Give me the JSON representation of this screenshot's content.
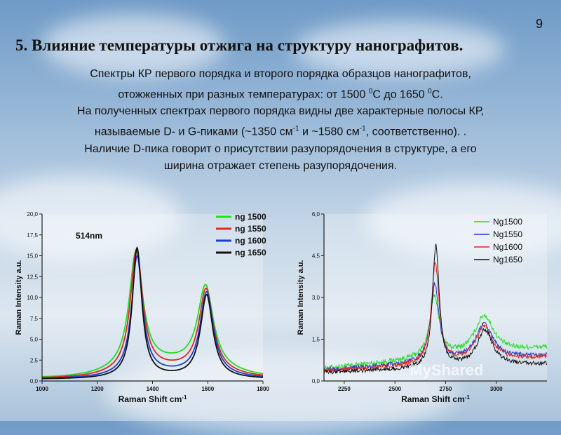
{
  "slide": {
    "number": "9",
    "title": "5. Влияние температуры отжига на структуру нанографитов.",
    "paragraph": [
      "Спектры КР первого порядка и второго порядка  образцов нанографитов,",
      "отожженных при разных температурах: от 1500 ",
      "0",
      "С до 1650 ",
      "0",
      "С.",
      "На полученных спектрах первого порядка видны две характерные полосы КР,",
      "называемые D- и G-пиками (~1350 см",
      "-1",
      " и ~1580 см",
      "-1",
      ", соответственно). .",
      "Наличие D-пика говорит о присутствии разупорядочения в структуре, а его",
      "ширина отражает степень разупорядочения."
    ]
  },
  "chart_data": [
    {
      "type": "line",
      "xlabel": "Raman Shift cm",
      "xlabel_sup": "-1",
      "ylabel": "Raman Intensity a.u.",
      "annotation": "514nm",
      "xlim": [
        1000,
        1800
      ],
      "ylim": [
        0,
        20
      ],
      "x_ticks": [
        "1000",
        "1200",
        "1400",
        "1600",
        "1800"
      ],
      "y_ticks": [
        "0,0",
        "2,5",
        "5,0",
        "7,5",
        "10,0",
        "12,5",
        "15,0",
        "17,5",
        "20,0"
      ],
      "legend_position": "top-right",
      "series": [
        {
          "name": "ng 1500",
          "color": "#22dd22",
          "peaks": [
            [
              1340,
              13.9,
              30
            ],
            [
              1592,
              9.8,
              34
            ]
          ],
          "baseline": 0.35,
          "bg": 1.6
        },
        {
          "name": "ng 1550",
          "color": "#e0281e",
          "peaks": [
            [
              1342,
              14.6,
              27
            ],
            [
              1594,
              9.9,
              31
            ]
          ],
          "baseline": 0.3,
          "bg": 1.0
        },
        {
          "name": "ng 1600",
          "color": "#1a3fd0",
          "peaks": [
            [
              1344,
              14.2,
              24
            ],
            [
              1596,
              9.9,
              29
            ]
          ],
          "baseline": 0.25,
          "bg": 0.55
        },
        {
          "name": "ng 1650",
          "color": "#111111",
          "peaks": [
            [
              1344,
              15.5,
              21
            ],
            [
              1596,
              9.9,
              27
            ]
          ],
          "baseline": 0.2,
          "bg": 0.2
        }
      ]
    },
    {
      "type": "line",
      "xlabel": "Raman Shift cm",
      "xlabel_sup": "-1",
      "ylabel": "Raman Intensity a.u.",
      "xlim": [
        2150,
        3250
      ],
      "ylim": [
        0,
        6
      ],
      "x_ticks": [
        "2250",
        "2500",
        "2750",
        "3000"
      ],
      "y_ticks": [
        "0,0",
        "1,5",
        "3,0",
        "4,5",
        "6,0"
      ],
      "legend_position": "top-right",
      "watermark": "MyShared",
      "series": [
        {
          "name": "Ng1500",
          "color": "#22dd22",
          "peaks": [
            [
              2695,
              2.2,
              28
            ],
            [
              2940,
              1.35,
              55
            ]
          ],
          "baseline": 0.45,
          "slope": 0.75,
          "noise": 0.09
        },
        {
          "name": "Ng1550",
          "color": "#1a3fd0",
          "peaks": [
            [
              2697,
              2.8,
              25
            ],
            [
              2940,
              1.25,
              52
            ]
          ],
          "baseline": 0.4,
          "slope": 0.5,
          "noise": 0.08
        },
        {
          "name": "Ng1600",
          "color": "#e0281e",
          "peaks": [
            [
              2699,
              3.6,
              23
            ],
            [
              2940,
              1.25,
              50
            ]
          ],
          "baseline": 0.35,
          "slope": 0.5,
          "noise": 0.08
        },
        {
          "name": "Ng1650",
          "color": "#111111",
          "peaks": [
            [
              2702,
              4.4,
              20
            ],
            [
              2943,
              1.3,
              48
            ]
          ],
          "baseline": 0.3,
          "slope": 0.3,
          "noise": 0.07
        }
      ]
    }
  ]
}
